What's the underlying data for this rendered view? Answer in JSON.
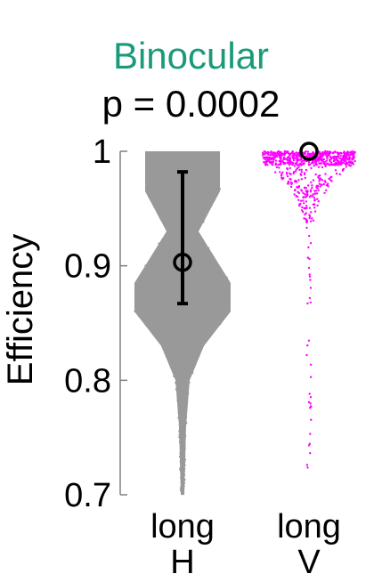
{
  "chart_data": {
    "type": "violin",
    "title": "Binocular",
    "subtitle": "p = 0.0002",
    "ylabel": "Efficiency",
    "xlabel": "",
    "ylim": [
      0.7,
      1.0
    ],
    "yticks": [
      0.7,
      0.8,
      0.9,
      1.0
    ],
    "ytick_labels": [
      "0.7",
      "0.8",
      "0.9",
      "1"
    ],
    "categories": [
      {
        "line1": "long",
        "line2": "H"
      },
      {
        "line1": "long",
        "line2": "V"
      }
    ],
    "series": [
      {
        "color": "#999999",
        "mean": 0.903,
        "err_low": 0.867,
        "err_high": 0.982,
        "min": 0.7,
        "max": 1.0
      },
      {
        "color": "#ff00ff",
        "mean": 1.0,
        "min": 0.7,
        "max": 1.0
      }
    ],
    "colors": {
      "title": "#1a9a7a",
      "axis": "#808080",
      "marker": "#000000"
    }
  }
}
